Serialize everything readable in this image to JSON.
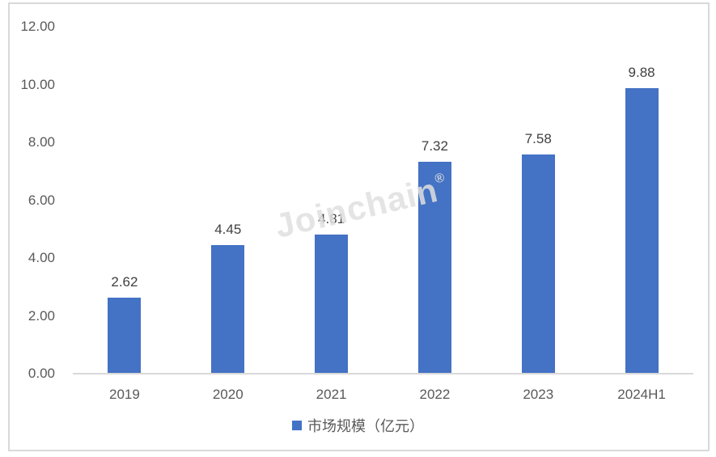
{
  "chart_data": {
    "type": "bar",
    "title": "",
    "categories": [
      "2019",
      "2020",
      "2021",
      "2022",
      "2023",
      "2024H1"
    ],
    "series": [
      {
        "name": "市场规模（亿元）",
        "values": [
          2.62,
          4.45,
          4.81,
          7.32,
          7.58,
          9.88
        ],
        "value_labels": [
          "2.62",
          "4.45",
          "4.81",
          "7.32",
          "7.58",
          "9.88"
        ],
        "color": "#4472C4"
      }
    ],
    "xlabel": "",
    "ylabel": "",
    "ylim": [
      0,
      12
    ],
    "ytick_step": 2,
    "ytick_labels": [
      "0.00",
      "2.00",
      "4.00",
      "6.00",
      "8.00",
      "10.00",
      "12.00"
    ],
    "grid": false,
    "legend_position": "bottom"
  },
  "legend": {
    "label": "市场规模（亿元）",
    "marker_color": "#4472C4"
  },
  "watermark": {
    "text": "Joinchain",
    "registered_mark": "®"
  },
  "colors": {
    "bar": "#4472C4",
    "axis_line": "#d9d9d9",
    "frame_border": "#d9d9d9",
    "tick_text": "#595959",
    "value_label_text": "#404040"
  }
}
